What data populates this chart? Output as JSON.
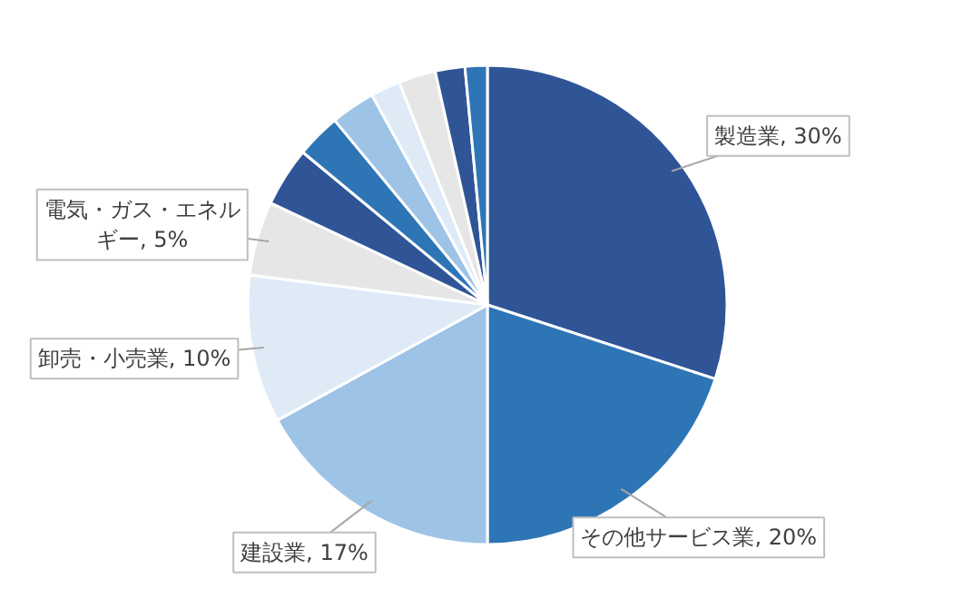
{
  "chart_data": {
    "type": "pie",
    "categories": [
      "製造業",
      "その他サービス業",
      "建設業",
      "卸売・小売業",
      "電気・ガス・エネルギー",
      null,
      null,
      null,
      null,
      null,
      null,
      null
    ],
    "values": [
      30,
      20,
      17,
      10,
      5,
      4,
      3,
      3,
      2,
      2.5,
      2,
      1.5
    ],
    "value_labels": [
      "30%",
      "20%",
      "17%",
      "10%",
      "5%",
      null,
      null,
      null,
      null,
      null,
      null,
      null
    ],
    "colors": [
      "#2f5597",
      "#2e75b6",
      "#9dc3e6",
      "#deebf7",
      "#e7e6e6",
      "#2f5597",
      "#2e75b6",
      "#9dc3e6",
      "#deebf7",
      "#e7e6e6",
      "#2f5597",
      "#2e75b6"
    ],
    "data_labels": false
  }
}
